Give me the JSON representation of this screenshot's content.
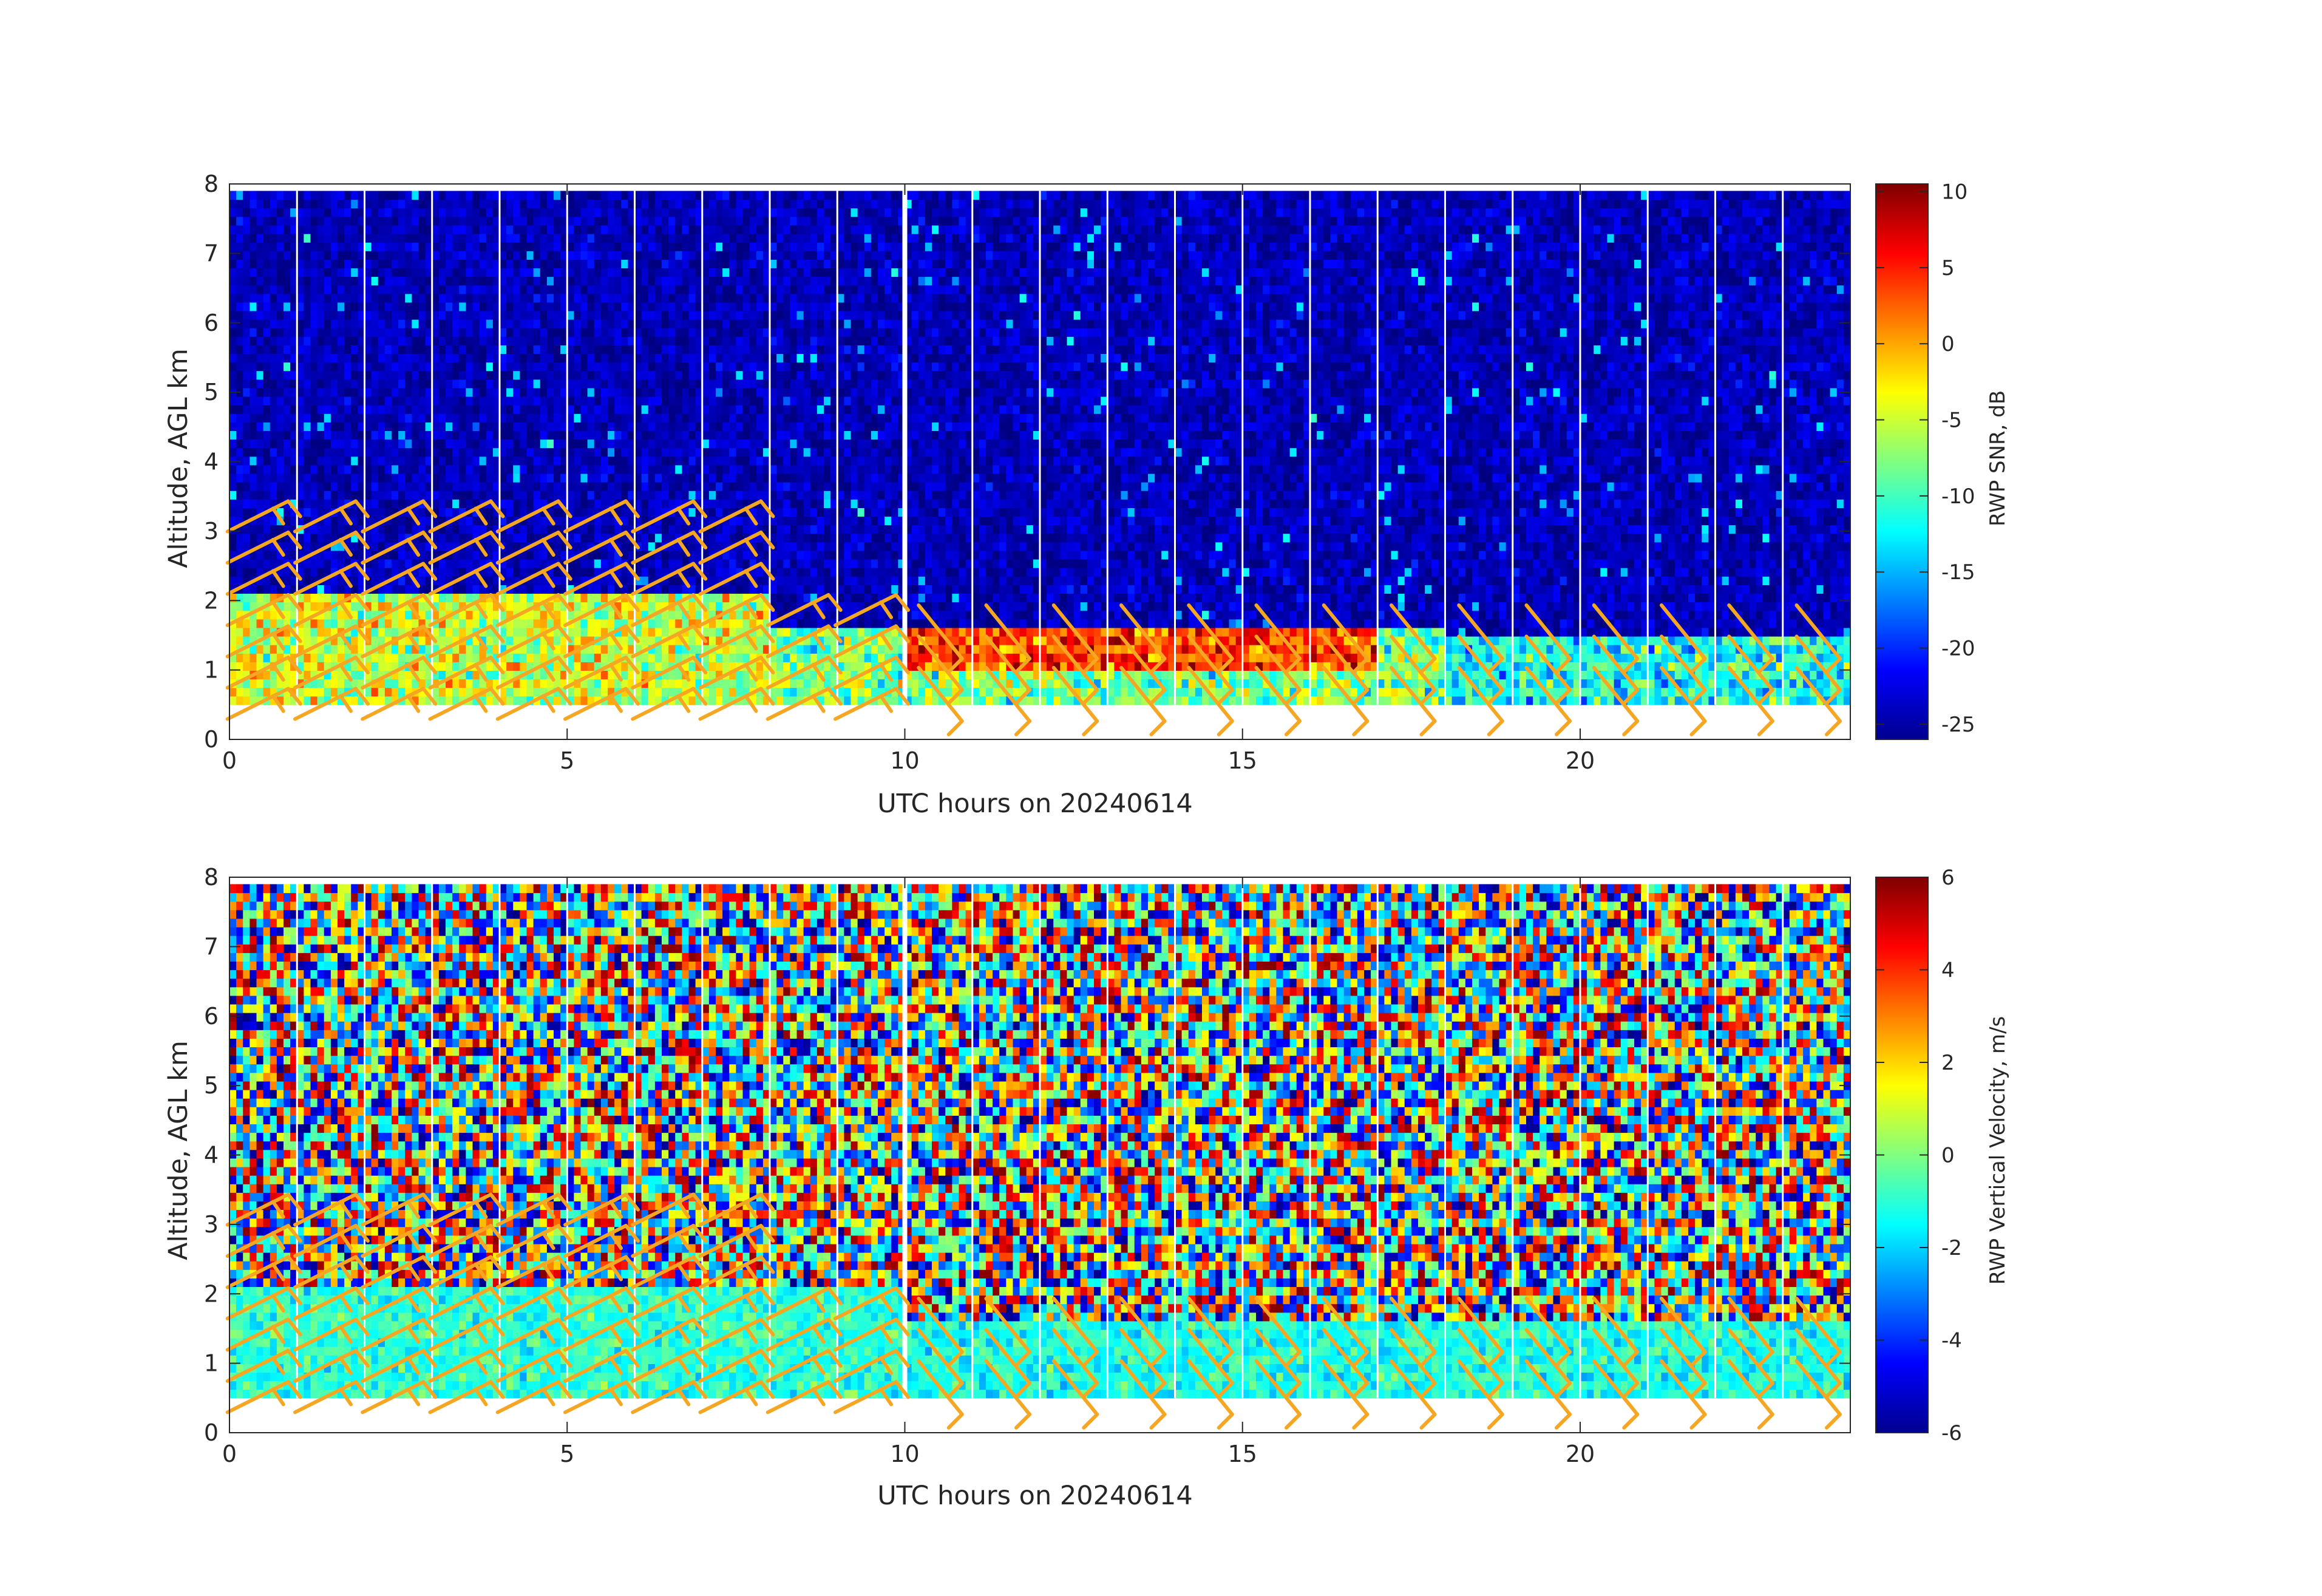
{
  "chart_data": [
    {
      "type": "heatmap",
      "title": "",
      "xlabel": "UTC hours on 20240614",
      "ylabel": "Altitude, AGL km",
      "xlim": [
        0,
        24
      ],
      "ylim": [
        0,
        8
      ],
      "xticks": [
        "0",
        "5",
        "10",
        "15",
        "20"
      ],
      "yticks": [
        "0",
        "1",
        "2",
        "3",
        "4",
        "5",
        "6",
        "7",
        "8"
      ],
      "colorbar": {
        "label": "RWP SNR, dB",
        "range": [
          -26,
          10.5
        ],
        "ticks": [
          "10",
          "5",
          "0",
          "-5",
          "-10",
          "-15",
          "-20",
          "-25"
        ],
        "colormap": "jet"
      },
      "data_altitude_range_km": [
        0.5,
        7.9
      ],
      "signal_layers": [
        {
          "time_range": [
            0,
            8
          ],
          "altitude_range": [
            0.5,
            2.0
          ],
          "value_db": -5
        },
        {
          "time_range": [
            8,
            18
          ],
          "altitude_range": [
            0.5,
            1.6
          ],
          "value_db": -8
        },
        {
          "time_range": [
            18,
            24
          ],
          "altitude_range": [
            0.5,
            1.4
          ],
          "value_db": -12
        },
        {
          "time_range": [
            10,
            17
          ],
          "altitude_range": [
            0.9,
            1.5
          ],
          "value_db": 4
        }
      ],
      "background_value_db": -24,
      "overlay": "wind-barbs",
      "overlay_color": "#f5a623"
    },
    {
      "type": "heatmap",
      "title": "",
      "xlabel": "UTC hours on 20240614",
      "ylabel": "Altitude, AGL km",
      "xlim": [
        0,
        24
      ],
      "ylim": [
        0,
        8
      ],
      "xticks": [
        "0",
        "5",
        "10",
        "15",
        "20"
      ],
      "yticks": [
        "0",
        "1",
        "2",
        "3",
        "4",
        "5",
        "6",
        "7",
        "8"
      ],
      "colorbar": {
        "label": "RWP Vertical Velocity, m/s",
        "range": [
          -6,
          6
        ],
        "ticks": [
          "6",
          "4",
          "2",
          "0",
          "-2",
          "-4",
          "-6"
        ],
        "colormap": "jet"
      },
      "data_altitude_range_km": [
        0.5,
        7.9
      ],
      "signal_layers": [
        {
          "time_range": [
            0,
            10
          ],
          "altitude_range": [
            0.5,
            2.0
          ],
          "value_ms": -1.0
        },
        {
          "time_range": [
            10,
            24
          ],
          "altitude_range": [
            0.5,
            1.5
          ],
          "value_ms": -1.2
        }
      ],
      "noise": "random values between -6 and 6 above the signal layer",
      "overlay": "wind-barbs",
      "overlay_color": "#f5a623"
    }
  ]
}
